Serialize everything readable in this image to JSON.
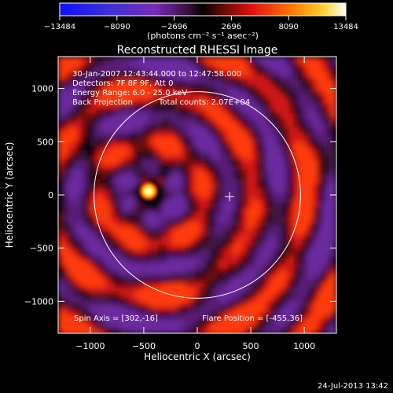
{
  "chart_data": {
    "type": "heatmap",
    "title": "Reconstructed RHESSI Image",
    "xlabel": "Heliocentric X (arcsec)",
    "ylabel": "Heliocentric Y (arcsec)",
    "xlim": [
      -1300,
      1300
    ],
    "ylim": [
      -1300,
      1300
    ],
    "xticks": [
      -1000,
      -500,
      0,
      500,
      1000
    ],
    "xtick_labels": [
      "−1000",
      "−500",
      "0",
      "500",
      "1000"
    ],
    "yticks": [
      -1000,
      -500,
      0,
      500,
      1000
    ],
    "ytick_labels": [
      "−1000",
      "−500",
      "0",
      "500",
      "1000"
    ],
    "annotations": [
      "30-Jan-2007 12:43:44.000 to 12:47:58.000",
      "Detectors: 7F 8F 9F, Att 0",
      "Energy Range: 6.0 - 25.0 keV",
      "Back Projection",
      "Total counts: 2.07E+04"
    ],
    "spin_axis_label": "Spin Axis = [302,-16]",
    "flare_position_label": "Flare Position = [-455,36]",
    "spin_axis": [
      302,
      -16
    ],
    "flare_position": [
      -455,
      36
    ],
    "solar_limb_radius": 965,
    "colorbar": {
      "ticks": [
        -13484,
        -8090,
        -2696,
        2696,
        8090,
        13484
      ],
      "tick_labels": [
        "−13484",
        "−8090",
        "−2696",
        "2696",
        "8090",
        "13484"
      ],
      "units_label": "(photons cm⁻² s⁻¹ asec⁻²)",
      "range": [
        -13484,
        13484
      ]
    },
    "colors": {
      "background": "#000000",
      "negative_low": "#0000ff",
      "negative_mid": "#8a2be2",
      "positive_mid": "#ff2a00",
      "positive_high": "#ffffff",
      "limb": "#ffffff"
    },
    "timestamp": "24-Jul-2013 13:42"
  }
}
